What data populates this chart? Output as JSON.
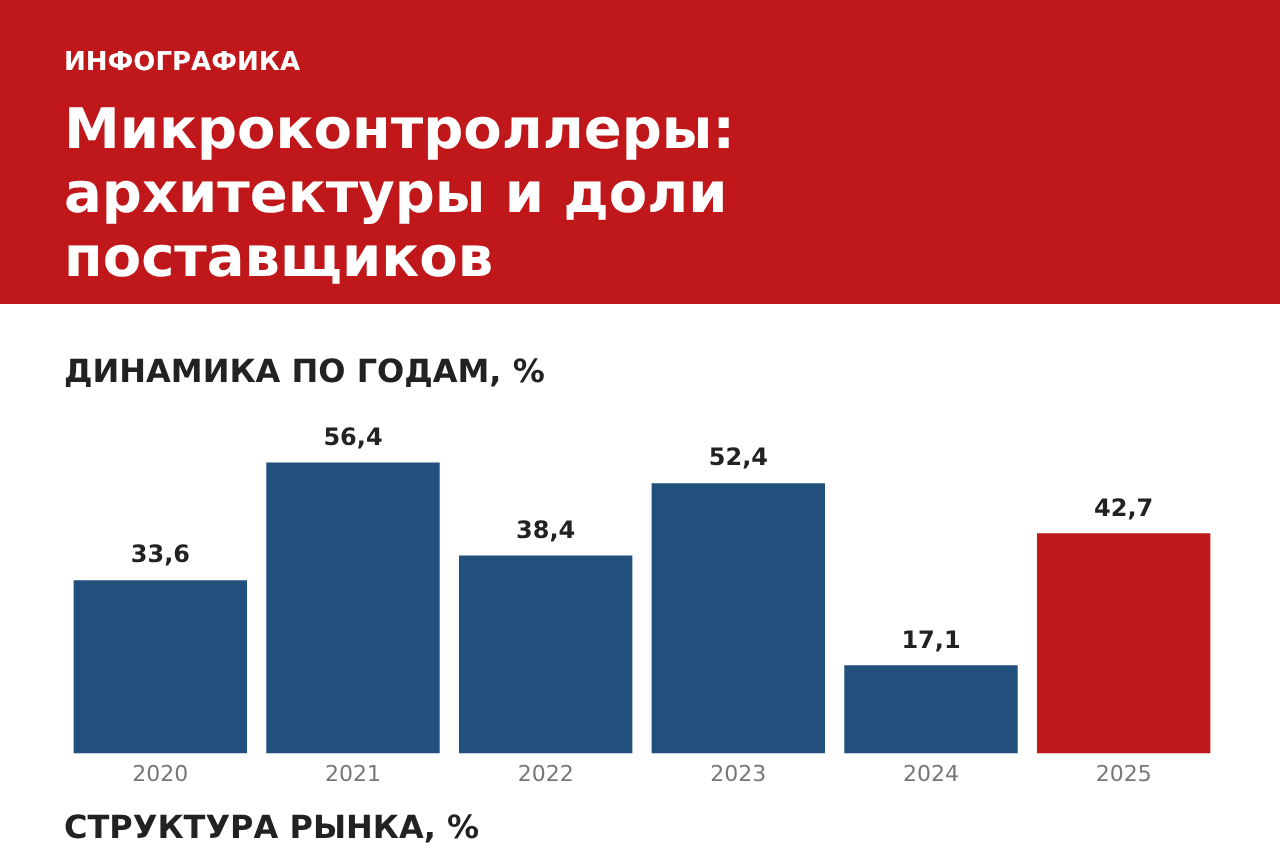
{
  "chart_data": {
    "type": "bar",
    "title": "Микроконтроллеры: архитектуры и доли поставщиков",
    "subtitle": "ДИНАМИКА ПО ГОДАМ, %",
    "annotations": [
      "ИНФОГРАФИКА",
      "СТРУКТУРА РЫНКА, %"
    ],
    "categories": [
      "2020",
      "2021",
      "2022",
      "2023",
      "2024",
      "2025"
    ],
    "values": [
      33.6,
      56.4,
      38.4,
      52.4,
      17.1,
      42.7
    ],
    "colors": [
      "#22507d",
      "#22507d",
      "#22507d",
      "#22507d",
      "#22507d",
      "#c0171b"
    ],
    "value_labels": [
      "33,6",
      "56,4",
      "38,4",
      "52,4",
      "17,1",
      "42,7"
    ],
    "grid": false,
    "legend": false
  }
}
